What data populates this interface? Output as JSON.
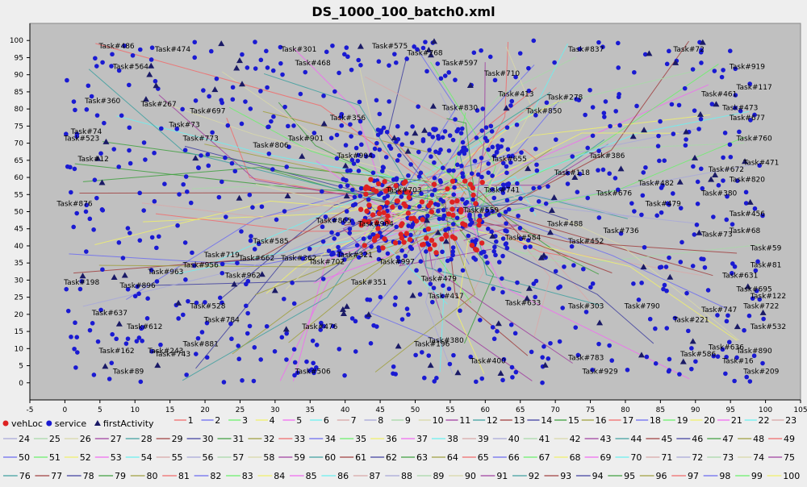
{
  "chart_data": {
    "type": "scatter",
    "title": "DS_1000_100_batch0.xml",
    "xlabel": "",
    "ylabel": "",
    "xlim": [
      -5,
      105
    ],
    "ylim": [
      -5,
      105
    ],
    "x_ticks": [
      "-5",
      "0",
      "5",
      "10",
      "15",
      "20",
      "25",
      "30",
      "35",
      "40",
      "45",
      "50",
      "55",
      "60",
      "65",
      "70",
      "75",
      "80",
      "85",
      "90",
      "95",
      "100",
      "105"
    ],
    "y_ticks": [
      "0",
      "5",
      "10",
      "15",
      "20",
      "25",
      "30",
      "35",
      "40",
      "45",
      "50",
      "55",
      "60",
      "65",
      "70",
      "75",
      "80",
      "85",
      "90",
      "95",
      "100"
    ],
    "plot_background": "#c0c0c0",
    "legend_placement": "bottom",
    "colors": {
      "vehLoc": "#dd2222",
      "service": "#1a1ad2",
      "firstActivity": "#1a1a66"
    },
    "legend_markers": [
      {
        "label": "vehLoc",
        "marker": "circle",
        "color": "#dd2222"
      },
      {
        "label": "service",
        "marker": "circle",
        "color": "#1a1ad2"
      },
      {
        "label": "firstActivity",
        "marker": "triangle",
        "color": "#1a1a66"
      }
    ],
    "route_colors": [
      "#f06c6c",
      "#6c6cf0",
      "#6cf06c",
      "#f0f06c",
      "#f06cf0",
      "#6cf0f0",
      "#d8a8a8",
      "#a8a8d8",
      "#a8d8a8",
      "#d8d8a8",
      "#a040a0",
      "#40a0a0",
      "#a04040",
      "#4040a0",
      "#40a040",
      "#a0a040"
    ],
    "routes": [
      "1",
      "2",
      "3",
      "4",
      "5",
      "6",
      "7",
      "8",
      "9",
      "10",
      "11",
      "12",
      "13",
      "14",
      "15",
      "16",
      "17",
      "18",
      "19",
      "20",
      "21",
      "22",
      "23",
      "24",
      "25",
      "26",
      "27",
      "28",
      "29",
      "30",
      "31",
      "32",
      "33",
      "34",
      "35",
      "36",
      "37",
      "38",
      "39",
      "40",
      "41",
      "42",
      "43",
      "44",
      "45",
      "46",
      "47",
      "48",
      "49",
      "50",
      "51",
      "52",
      "53",
      "54",
      "55",
      "56",
      "57",
      "58",
      "59",
      "60",
      "61",
      "62",
      "63",
      "64",
      "65",
      "66",
      "67",
      "68",
      "69",
      "70",
      "71",
      "72",
      "73",
      "74",
      "75",
      "76",
      "77",
      "78",
      "79",
      "80",
      "81",
      "82",
      "83",
      "84",
      "85",
      "86",
      "87",
      "88",
      "89",
      "90",
      "91",
      "92",
      "93",
      "94",
      "95",
      "96",
      "97",
      "98",
      "99",
      "100"
    ],
    "task_labels": [
      {
        "text": "Task#486",
        "x": 6,
        "y": 97
      },
      {
        "text": "Task#474",
        "x": 14,
        "y": 96
      },
      {
        "text": "Task#301",
        "x": 32,
        "y": 96
      },
      {
        "text": "Task#575",
        "x": 45,
        "y": 97
      },
      {
        "text": "Task#768",
        "x": 50,
        "y": 95
      },
      {
        "text": "Task#597",
        "x": 55,
        "y": 92
      },
      {
        "text": "Task#468",
        "x": 34,
        "y": 92
      },
      {
        "text": "Task#564",
        "x": 8,
        "y": 91
      },
      {
        "text": "Task#837",
        "x": 73,
        "y": 96
      },
      {
        "text": "Task#72",
        "x": 88,
        "y": 96
      },
      {
        "text": "Task#919",
        "x": 96,
        "y": 91
      },
      {
        "text": "Task#710",
        "x": 61,
        "y": 89
      },
      {
        "text": "Task#413",
        "x": 63,
        "y": 83
      },
      {
        "text": "Task#117",
        "x": 97,
        "y": 85
      },
      {
        "text": "Task#461",
        "x": 92,
        "y": 83
      },
      {
        "text": "Task#278",
        "x": 70,
        "y": 82
      },
      {
        "text": "Task#360",
        "x": 4,
        "y": 81
      },
      {
        "text": "Task#267",
        "x": 12,
        "y": 80
      },
      {
        "text": "Task#697",
        "x": 19,
        "y": 78
      },
      {
        "text": "Task#356",
        "x": 39,
        "y": 76
      },
      {
        "text": "Task#830",
        "x": 55,
        "y": 79
      },
      {
        "text": "Task#850",
        "x": 67,
        "y": 78
      },
      {
        "text": "Task#473",
        "x": 95,
        "y": 79
      },
      {
        "text": "Task#677",
        "x": 96,
        "y": 76
      },
      {
        "text": "Task#73",
        "x": 16,
        "y": 74
      },
      {
        "text": "Task#74",
        "x": 2,
        "y": 72
      },
      {
        "text": "Task#523",
        "x": 1,
        "y": 70
      },
      {
        "text": "Task#773",
        "x": 18,
        "y": 70
      },
      {
        "text": "Task#901",
        "x": 33,
        "y": 70
      },
      {
        "text": "Task#760",
        "x": 97,
        "y": 70
      },
      {
        "text": "Task#806",
        "x": 28,
        "y": 68
      },
      {
        "text": "Task#12",
        "x": 3,
        "y": 64
      },
      {
        "text": "Task#994",
        "x": 40,
        "y": 65
      },
      {
        "text": "Task#655",
        "x": 62,
        "y": 64
      },
      {
        "text": "Task#386",
        "x": 76,
        "y": 65
      },
      {
        "text": "Task#471",
        "x": 98,
        "y": 63
      },
      {
        "text": "Task#672",
        "x": 93,
        "y": 61
      },
      {
        "text": "Task#820",
        "x": 96,
        "y": 58
      },
      {
        "text": "Task#118",
        "x": 71,
        "y": 60
      },
      {
        "text": "Task#741",
        "x": 61,
        "y": 55
      },
      {
        "text": "Task#703",
        "x": 47,
        "y": 55
      },
      {
        "text": "Task#482",
        "x": 83,
        "y": 57
      },
      {
        "text": "Task#380",
        "x": 92,
        "y": 54
      },
      {
        "text": "Task#676",
        "x": 77,
        "y": 54
      },
      {
        "text": "Task#876",
        "x": 0,
        "y": 51
      },
      {
        "text": "Task#479",
        "x": 84,
        "y": 51
      },
      {
        "text": "Task#456",
        "x": 96,
        "y": 48
      },
      {
        "text": "Task#559",
        "x": 58,
        "y": 49
      },
      {
        "text": "Task#488",
        "x": 70,
        "y": 45
      },
      {
        "text": "Task#736",
        "x": 78,
        "y": 43
      },
      {
        "text": "Task#68",
        "x": 96,
        "y": 43
      },
      {
        "text": "Task#73",
        "x": 92,
        "y": 42
      },
      {
        "text": "Task#904",
        "x": 43,
        "y": 45
      },
      {
        "text": "Task#865",
        "x": 37,
        "y": 46
      },
      {
        "text": "Task#584",
        "x": 64,
        "y": 41
      },
      {
        "text": "Task#452",
        "x": 73,
        "y": 40
      },
      {
        "text": "Task#585",
        "x": 28,
        "y": 40
      },
      {
        "text": "Task#59",
        "x": 99,
        "y": 38
      },
      {
        "text": "Task#719",
        "x": 21,
        "y": 36
      },
      {
        "text": "Task#662",
        "x": 26,
        "y": 35
      },
      {
        "text": "Task#362",
        "x": 32,
        "y": 35
      },
      {
        "text": "Task#321",
        "x": 40,
        "y": 36
      },
      {
        "text": "Task#702",
        "x": 36,
        "y": 34
      },
      {
        "text": "Task#997",
        "x": 46,
        "y": 34
      },
      {
        "text": "Task#81",
        "x": 99,
        "y": 33
      },
      {
        "text": "Task#956",
        "x": 18,
        "y": 33
      },
      {
        "text": "Task#963",
        "x": 13,
        "y": 31
      },
      {
        "text": "Task#962",
        "x": 24,
        "y": 30
      },
      {
        "text": "Task#631",
        "x": 95,
        "y": 30
      },
      {
        "text": "Task#896",
        "x": 9,
        "y": 27
      },
      {
        "text": "Task#198",
        "x": 1,
        "y": 28
      },
      {
        "text": "Task#351",
        "x": 42,
        "y": 28
      },
      {
        "text": "Task#479",
        "x": 52,
        "y": 29
      },
      {
        "text": "Task#695",
        "x": 97,
        "y": 26
      },
      {
        "text": "Task#122",
        "x": 99,
        "y": 24
      },
      {
        "text": "Task#722",
        "x": 98,
        "y": 21
      },
      {
        "text": "Task#417",
        "x": 53,
        "y": 24
      },
      {
        "text": "Task#528",
        "x": 19,
        "y": 21
      },
      {
        "text": "Task#633",
        "x": 64,
        "y": 22
      },
      {
        "text": "Task#790",
        "x": 81,
        "y": 21
      },
      {
        "text": "Task#303",
        "x": 73,
        "y": 21
      },
      {
        "text": "Task#747",
        "x": 92,
        "y": 20
      },
      {
        "text": "Task#637",
        "x": 5,
        "y": 19
      },
      {
        "text": "Task#784",
        "x": 21,
        "y": 17
      },
      {
        "text": "Task#221",
        "x": 88,
        "y": 17
      },
      {
        "text": "Task#532",
        "x": 99,
        "y": 15
      },
      {
        "text": "Task#612",
        "x": 10,
        "y": 15
      },
      {
        "text": "Task#476",
        "x": 35,
        "y": 15
      },
      {
        "text": "Task#881",
        "x": 18,
        "y": 10
      },
      {
        "text": "Task#162",
        "x": 6,
        "y": 8
      },
      {
        "text": "Task#243",
        "x": 13,
        "y": 8
      },
      {
        "text": "Task#743",
        "x": 14,
        "y": 7
      },
      {
        "text": "Task#196",
        "x": 51,
        "y": 10
      },
      {
        "text": "Task#380",
        "x": 53,
        "y": 11
      },
      {
        "text": "Task#636",
        "x": 93,
        "y": 9
      },
      {
        "text": "Task#890",
        "x": 97,
        "y": 8
      },
      {
        "text": "Task#586",
        "x": 89,
        "y": 7
      },
      {
        "text": "Task#783",
        "x": 73,
        "y": 6
      },
      {
        "text": "Task#400",
        "x": 59,
        "y": 5
      },
      {
        "text": "Task#506",
        "x": 34,
        "y": 2
      },
      {
        "text": "Task#89",
        "x": 8,
        "y": 2
      },
      {
        "text": "Task#929",
        "x": 75,
        "y": 2
      },
      {
        "text": "Task#209",
        "x": 98,
        "y": 2
      },
      {
        "text": "Task#16",
        "x": 95,
        "y": 5
      }
    ]
  }
}
